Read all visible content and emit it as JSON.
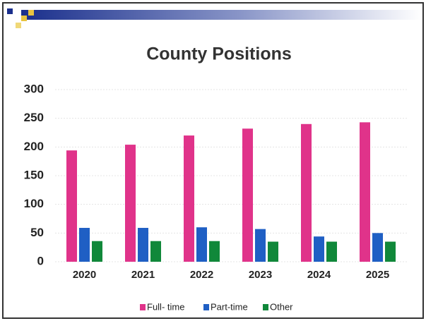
{
  "chart_data": {
    "type": "bar",
    "title": "County Positions",
    "categories": [
      "2020",
      "2021",
      "2022",
      "2023",
      "2024",
      "2025"
    ],
    "series": [
      {
        "name": "Full- time",
        "color": "#e0338a",
        "values": [
          194,
          204,
          220,
          232,
          240,
          243
        ]
      },
      {
        "name": "Part-time",
        "color": "#1f5fc4",
        "values": [
          59,
          59,
          60,
          57,
          44,
          50
        ]
      },
      {
        "name": "Other",
        "color": "#10883a",
        "values": [
          36,
          36,
          36,
          35,
          35,
          35
        ]
      }
    ],
    "ylim": [
      0,
      300
    ],
    "yticks": [
      0,
      50,
      100,
      150,
      200,
      250,
      300
    ],
    "grid": true,
    "legend": "bottom"
  }
}
